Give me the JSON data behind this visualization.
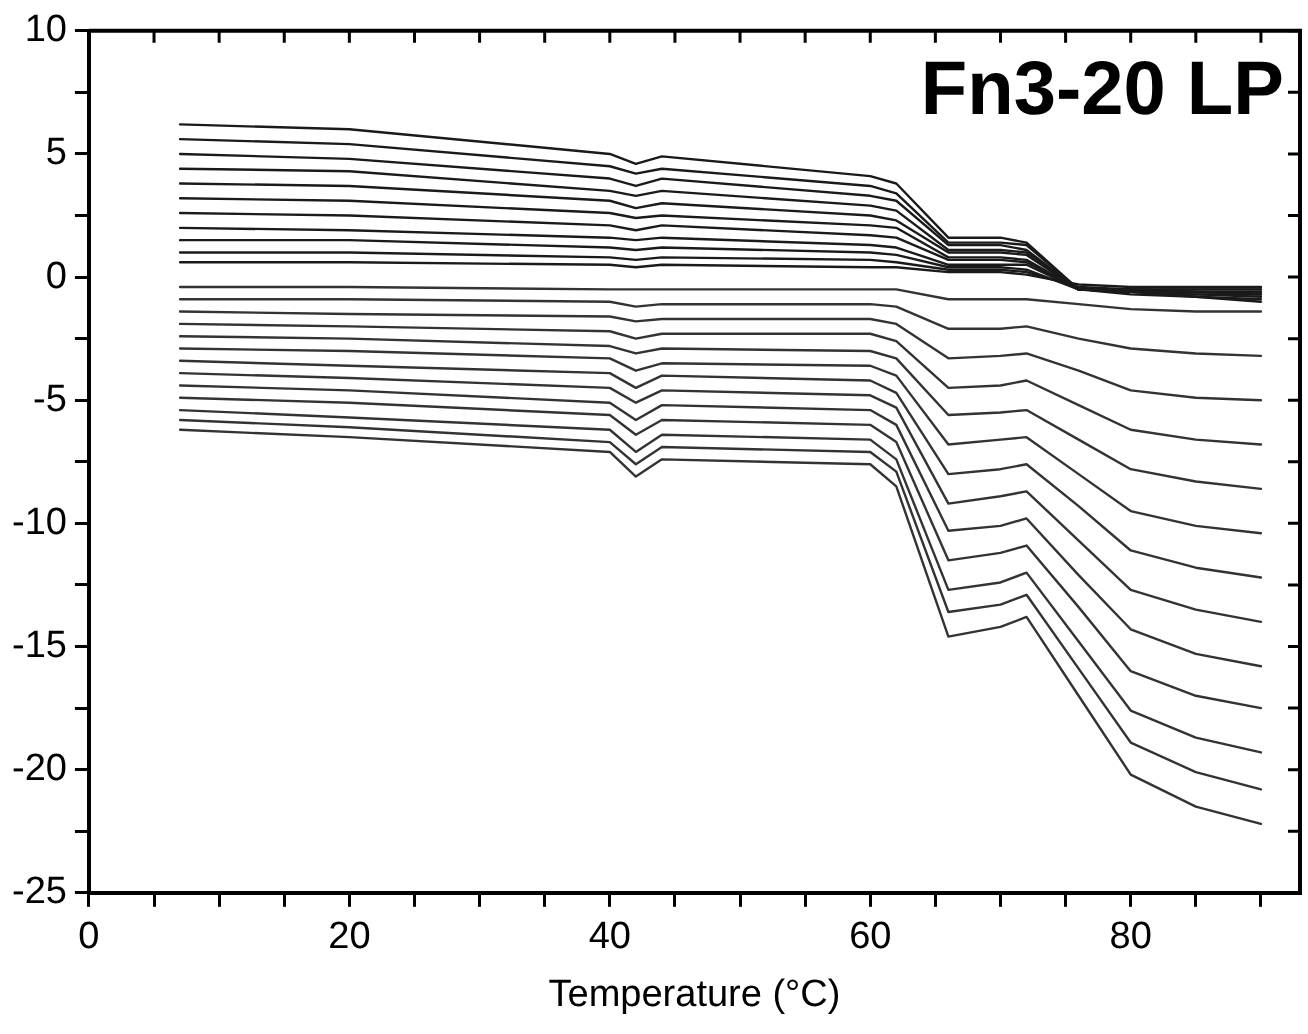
{
  "chart_data": {
    "type": "line",
    "xlabel": "Temperature (°C)",
    "annotations": [
      "Fn3-20 LP"
    ],
    "x": [
      7,
      20,
      40,
      42,
      44,
      60,
      62,
      66,
      70,
      72,
      76,
      80,
      85,
      90
    ],
    "xlim": [
      0,
      93
    ],
    "xticks": [
      0,
      {
        "value": 5,
        "label": null
      },
      {
        "value": 10,
        "label": null
      },
      {
        "value": 15,
        "label": null
      },
      20,
      {
        "value": 25,
        "label": null
      },
      {
        "value": 30,
        "label": null
      },
      {
        "value": 35,
        "label": null
      },
      40,
      {
        "value": 45,
        "label": null
      },
      {
        "value": 50,
        "label": null
      },
      {
        "value": 55,
        "label": null
      },
      60,
      {
        "value": 65,
        "label": null
      },
      {
        "value": 70,
        "label": null
      },
      {
        "value": 75,
        "label": null
      },
      80,
      {
        "value": 85,
        "label": null
      },
      {
        "value": 90,
        "label": null
      }
    ],
    "ylim": [
      -25,
      10
    ],
    "yticks": [
      -25,
      {
        "value": -22.5,
        "label": null
      },
      -20,
      {
        "value": -17.5,
        "label": null
      },
      -15,
      {
        "value": -12.5,
        "label": null
      },
      -10,
      {
        "value": -7.5,
        "label": null
      },
      -5,
      {
        "value": -2.5,
        "label": null
      },
      0,
      {
        "value": 2.5,
        "label": null
      },
      5,
      {
        "value": 7.5,
        "label": null
      },
      10
    ],
    "grid": false,
    "legend": false,
    "marker": "none",
    "line_style": "solid",
    "series": [
      {
        "color": "#1a1a1a",
        "values": [
          6.2,
          6.0,
          5.0,
          4.6,
          4.9,
          4.1,
          3.8,
          1.6,
          1.6,
          1.4,
          -0.5,
          -0.6,
          -0.7,
          -0.7
        ]
      },
      {
        "color": "#1a1a1a",
        "values": [
          5.6,
          5.4,
          4.5,
          4.2,
          4.4,
          3.7,
          3.4,
          1.4,
          1.4,
          1.3,
          -0.5,
          -0.6,
          -0.6,
          -0.7
        ]
      },
      {
        "color": "#1a1a1a",
        "values": [
          5.0,
          4.8,
          4.0,
          3.7,
          4.0,
          3.3,
          3.1,
          1.3,
          1.3,
          1.1,
          -0.5,
          -0.5,
          -0.6,
          -0.6
        ]
      },
      {
        "color": "#1a1a1a",
        "values": [
          4.4,
          4.3,
          3.5,
          3.3,
          3.5,
          2.9,
          2.7,
          1.1,
          1.1,
          1.0,
          -0.5,
          -0.6,
          -0.7,
          -0.8
        ]
      },
      {
        "color": "#1a1a1a",
        "values": [
          3.8,
          3.7,
          3.1,
          2.8,
          3.0,
          2.5,
          2.3,
          1.0,
          1.0,
          0.9,
          -0.5,
          -0.5,
          -0.5,
          -0.5
        ]
      },
      {
        "color": "#1a1a1a",
        "values": [
          3.2,
          3.1,
          2.6,
          2.4,
          2.5,
          2.1,
          2.0,
          0.8,
          0.8,
          0.7,
          -0.5,
          -0.6,
          -0.8,
          -0.9
        ]
      },
      {
        "color": "#1a1a1a",
        "values": [
          2.6,
          2.5,
          2.1,
          1.9,
          2.1,
          1.7,
          1.6,
          0.7,
          0.7,
          0.6,
          -0.5,
          -0.6,
          -0.6,
          -0.6
        ]
      },
      {
        "color": "#1a1a1a",
        "values": [
          2.0,
          1.9,
          1.6,
          1.5,
          1.6,
          1.3,
          1.2,
          0.5,
          0.5,
          0.5,
          -0.5,
          -0.7,
          -0.8,
          -1.0
        ]
      },
      {
        "color": "#1a1a1a",
        "values": [
          1.5,
          1.5,
          1.2,
          1.1,
          1.2,
          1.0,
          0.9,
          0.4,
          0.4,
          0.3,
          -0.5,
          -0.5,
          -0.6,
          -0.7
        ]
      },
      {
        "color": "#1a1a1a",
        "values": [
          1.0,
          1.0,
          0.8,
          0.7,
          0.8,
          0.7,
          0.6,
          0.3,
          0.3,
          0.2,
          -0.4,
          -0.5,
          -0.5,
          -0.5
        ]
      },
      {
        "color": "#1a1a1a",
        "values": [
          0.6,
          0.6,
          0.5,
          0.4,
          0.5,
          0.4,
          0.4,
          0.2,
          0.2,
          0.1,
          -0.3,
          -0.4,
          -0.4,
          -0.4
        ]
      },
      {
        "color": "#333333",
        "values": [
          -0.4,
          -0.4,
          -0.5,
          -0.5,
          -0.5,
          -0.5,
          -0.5,
          -0.9,
          -0.9,
          -0.9,
          -1.1,
          -1.3,
          -1.4,
          -1.4
        ]
      },
      {
        "color": "#333333",
        "values": [
          -0.9,
          -0.9,
          -1.0,
          -1.2,
          -1.1,
          -1.1,
          -1.2,
          -2.1,
          -2.1,
          -2.0,
          -2.5,
          -2.9,
          -3.1,
          -3.2
        ]
      },
      {
        "color": "#333333",
        "values": [
          -1.4,
          -1.5,
          -1.6,
          -1.8,
          -1.7,
          -1.7,
          -1.9,
          -3.3,
          -3.2,
          -3.1,
          -3.8,
          -4.6,
          -4.9,
          -5.0
        ]
      },
      {
        "color": "#333333",
        "values": [
          -1.9,
          -2.0,
          -2.2,
          -2.5,
          -2.3,
          -2.3,
          -2.6,
          -4.5,
          -4.4,
          -4.2,
          -5.2,
          -6.2,
          -6.6,
          -6.8
        ]
      },
      {
        "color": "#333333",
        "values": [
          -2.4,
          -2.5,
          -2.8,
          -3.1,
          -2.9,
          -3.0,
          -3.3,
          -5.6,
          -5.5,
          -5.4,
          -6.6,
          -7.8,
          -8.3,
          -8.6
        ]
      },
      {
        "color": "#333333",
        "values": [
          -2.9,
          -3.0,
          -3.3,
          -3.8,
          -3.5,
          -3.6,
          -4.0,
          -6.8,
          -6.6,
          -6.5,
          -8.0,
          -9.5,
          -10.1,
          -10.4
        ]
      },
      {
        "color": "#333333",
        "values": [
          -3.4,
          -3.6,
          -3.9,
          -4.5,
          -4.0,
          -4.2,
          -4.7,
          -8.0,
          -7.8,
          -7.6,
          -9.3,
          -11.1,
          -11.8,
          -12.2
        ]
      },
      {
        "color": "#333333",
        "values": [
          -3.9,
          -4.1,
          -4.5,
          -5.1,
          -4.6,
          -4.8,
          -5.3,
          -9.2,
          -8.9,
          -8.7,
          -10.7,
          -12.7,
          -13.5,
          -14.0
        ]
      },
      {
        "color": "#333333",
        "values": [
          -4.4,
          -4.6,
          -5.1,
          -5.8,
          -5.2,
          -5.4,
          -6.0,
          -10.3,
          -10.1,
          -9.8,
          -12.1,
          -14.3,
          -15.3,
          -15.8
        ]
      },
      {
        "color": "#333333",
        "values": [
          -4.9,
          -5.1,
          -5.6,
          -6.4,
          -5.8,
          -6.0,
          -6.7,
          -11.5,
          -11.2,
          -10.9,
          -13.4,
          -16.0,
          -17.0,
          -17.5
        ]
      },
      {
        "color": "#333333",
        "values": [
          -5.4,
          -5.7,
          -6.2,
          -7.1,
          -6.4,
          -6.6,
          -7.4,
          -12.7,
          -12.4,
          -12.0,
          -14.8,
          -17.6,
          -18.7,
          -19.3
        ]
      },
      {
        "color": "#333333",
        "values": [
          -5.8,
          -6.1,
          -6.7,
          -7.6,
          -6.9,
          -7.1,
          -7.9,
          -13.6,
          -13.3,
          -12.9,
          -15.9,
          -18.9,
          -20.1,
          -20.8
        ]
      },
      {
        "color": "#333333",
        "values": [
          -6.2,
          -6.5,
          -7.1,
          -8.1,
          -7.4,
          -7.6,
          -8.5,
          -14.6,
          -14.2,
          -13.8,
          -17.0,
          -20.2,
          -21.5,
          -22.2
        ]
      }
    ]
  }
}
